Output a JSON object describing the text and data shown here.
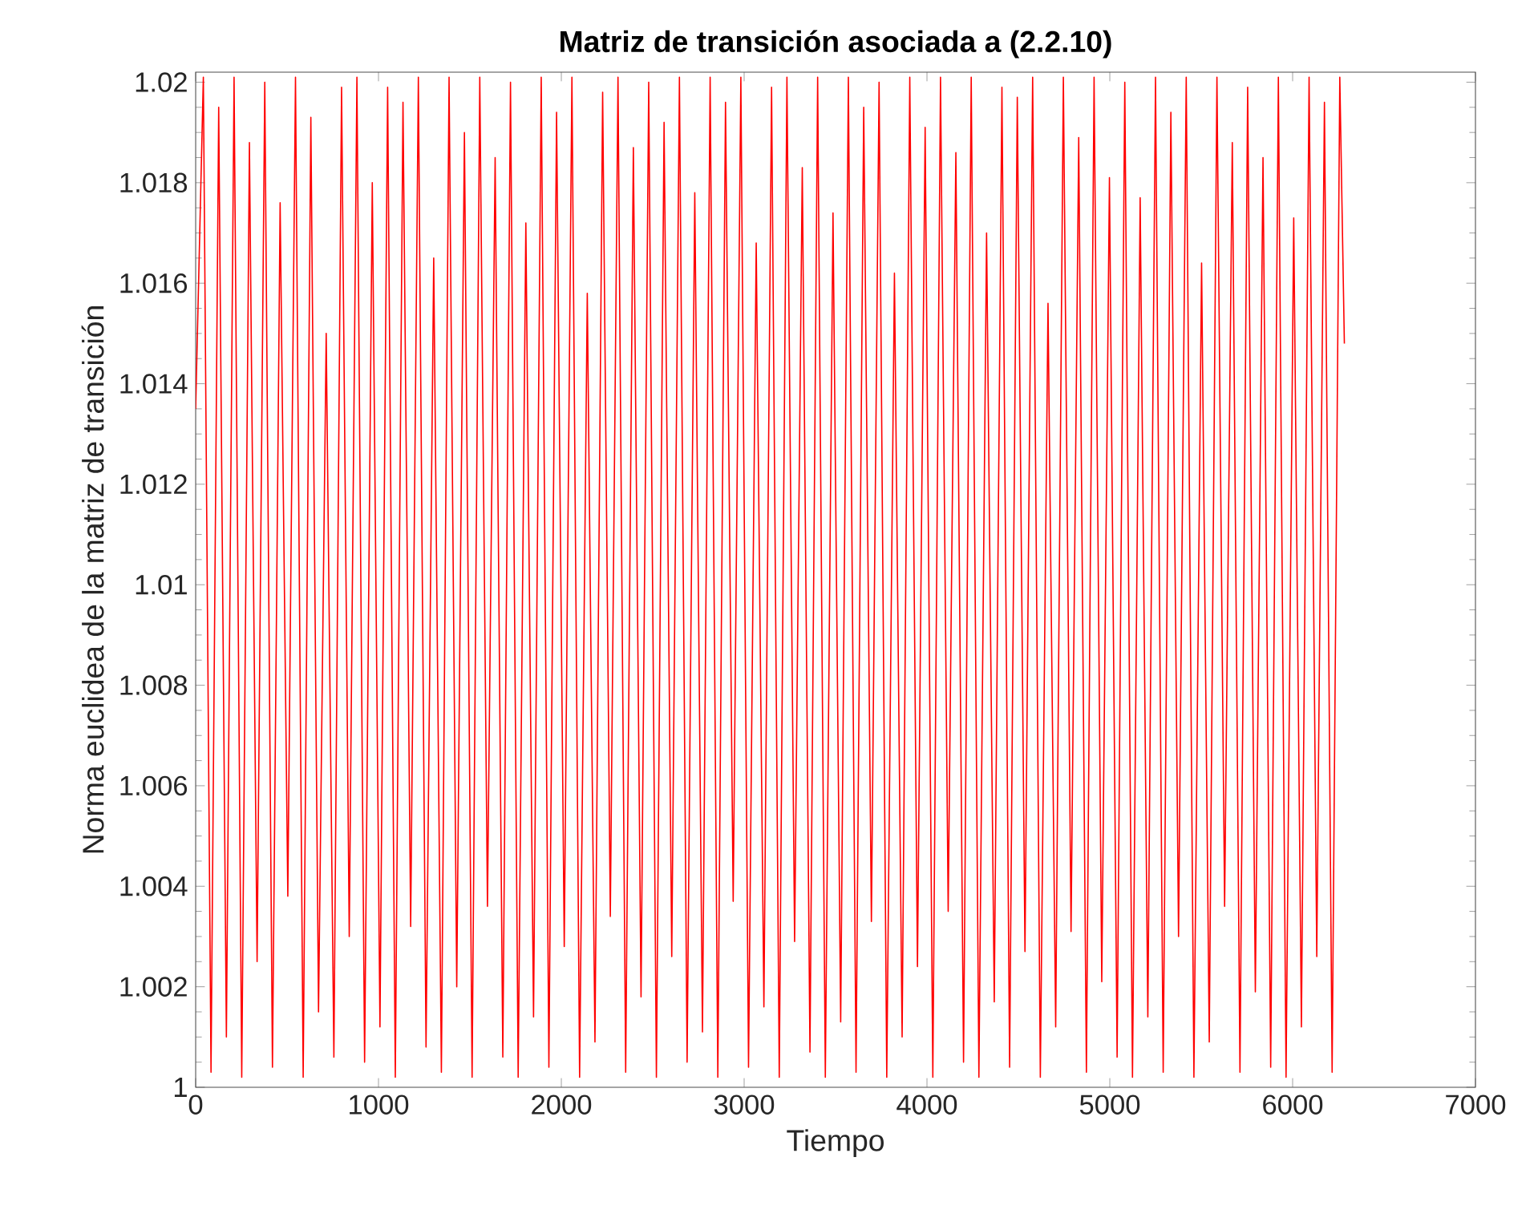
{
  "chart_data": {
    "type": "line",
    "title": "Matriz de transición asociada a (2.2.10)",
    "xlabel": "Tiempo",
    "ylabel": "Norma euclidea de la matriz de transición",
    "xlim": [
      0,
      7000
    ],
    "xticks": [
      0,
      1000,
      2000,
      3000,
      4000,
      5000,
      6000,
      7000
    ],
    "ylim": [
      1,
      1.0202
    ],
    "yticks": [
      1,
      1.002,
      1.004,
      1.006,
      1.008,
      1.01,
      1.012,
      1.014,
      1.016,
      1.018,
      1.02
    ],
    "x": [
      0,
      42,
      84,
      126,
      168,
      210,
      252,
      294,
      336,
      378,
      420,
      462,
      504,
      546,
      588,
      630,
      672,
      714,
      756,
      798,
      840,
      882,
      924,
      966,
      1008,
      1050,
      1092,
      1134,
      1176,
      1218,
      1260,
      1302,
      1344,
      1386,
      1428,
      1470,
      1512,
      1554,
      1596,
      1638,
      1680,
      1722,
      1764,
      1806,
      1848,
      1890,
      1932,
      1974,
      2016,
      2058,
      2100,
      2142,
      2184,
      2226,
      2268,
      2310,
      2352,
      2394,
      2436,
      2478,
      2520,
      2562,
      2604,
      2646,
      2688,
      2730,
      2772,
      2814,
      2856,
      2898,
      2940,
      2982,
      3024,
      3066,
      3108,
      3150,
      3192,
      3234,
      3276,
      3318,
      3360,
      3402,
      3444,
      3486,
      3528,
      3570,
      3612,
      3654,
      3696,
      3738,
      3780,
      3822,
      3864,
      3906,
      3948,
      3990,
      4032,
      4074,
      4116,
      4158,
      4200,
      4242,
      4284,
      4326,
      4368,
      4410,
      4452,
      4494,
      4536,
      4578,
      4620,
      4662,
      4704,
      4746,
      4788,
      4830,
      4872,
      4914,
      4956,
      4998,
      5040,
      5082,
      5124,
      5166,
      5208,
      5250,
      5292,
      5334,
      5376,
      5418,
      5460,
      5502,
      5544,
      5586,
      5628,
      5670,
      5712,
      5754,
      5796,
      5838,
      5880,
      5922,
      5964,
      6006,
      6048,
      6090,
      6132,
      6174,
      6216,
      6258,
      6283
    ],
    "series": [
      {
        "color": "#ff0000",
        "values": [
          1.0135,
          1.0201,
          1.0003,
          1.0195,
          1.001,
          1.0201,
          1.0002,
          1.0188,
          1.0025,
          1.02,
          1.0004,
          1.0176,
          1.0038,
          1.0201,
          1.0002,
          1.0193,
          1.0015,
          1.015,
          1.0006,
          1.0199,
          1.003,
          1.0201,
          1.0005,
          1.018,
          1.0012,
          1.0199,
          1.0002,
          1.0196,
          1.0032,
          1.0201,
          1.0008,
          1.0165,
          1.0003,
          1.0201,
          1.002,
          1.019,
          1.0002,
          1.0201,
          1.0036,
          1.0185,
          1.0006,
          1.02,
          1.0002,
          1.0172,
          1.0014,
          1.0201,
          1.0004,
          1.0194,
          1.0028,
          1.0201,
          1.0002,
          1.0158,
          1.0009,
          1.0198,
          1.0034,
          1.0201,
          1.0003,
          1.0187,
          1.0018,
          1.02,
          1.0002,
          1.0192,
          1.0026,
          1.0201,
          1.0005,
          1.0178,
          1.0011,
          1.0201,
          1.0002,
          1.0196,
          1.0037,
          1.0201,
          1.0004,
          1.0168,
          1.0016,
          1.0199,
          1.0002,
          1.0201,
          1.0029,
          1.0183,
          1.0007,
          1.0201,
          1.0002,
          1.0174,
          1.0013,
          1.0201,
          1.0003,
          1.0195,
          1.0033,
          1.02,
          1.0002,
          1.0162,
          1.001,
          1.0201,
          1.0024,
          1.0191,
          1.0002,
          1.0201,
          1.0035,
          1.0186,
          1.0005,
          1.0201,
          1.0002,
          1.017,
          1.0017,
          1.0199,
          1.0004,
          1.0197,
          1.0027,
          1.0201,
          1.0002,
          1.0156,
          1.0012,
          1.0201,
          1.0031,
          1.0189,
          1.0003,
          1.0201,
          1.0021,
          1.0181,
          1.0006,
          1.02,
          1.0002,
          1.0177,
          1.0014,
          1.0201,
          1.0003,
          1.0194,
          1.003,
          1.0201,
          1.0002,
          1.0164,
          1.0009,
          1.0201,
          1.0036,
          1.0188,
          1.0003,
          1.0199,
          1.0019,
          1.0185,
          1.0004,
          1.0201,
          1.0002,
          1.0173,
          1.0012,
          1.0201,
          1.0026,
          1.0196,
          1.0003,
          1.0201,
          1.0148
        ]
      }
    ]
  }
}
